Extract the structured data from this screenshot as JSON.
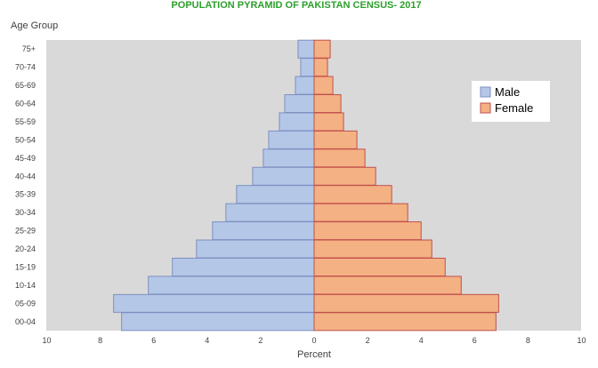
{
  "chart_data": {
    "type": "bar",
    "orientation": "horizontal-diverging",
    "title": "POPULATION PYRAMID OF PAKISTAN CENSUS- 2017",
    "ylabel": "Age Group",
    "xlabel": "Percent",
    "categories": [
      "00-04",
      "05-09",
      "10-14",
      "15-19",
      "20-24",
      "25-29",
      "30-34",
      "35-39",
      "40-44",
      "45-49",
      "50-54",
      "55-59",
      "60-64",
      "65-69",
      "70-74",
      "75+"
    ],
    "series": [
      {
        "name": "Male",
        "side": "left",
        "color": "#b4c7e7",
        "values": [
          7.2,
          7.5,
          6.2,
          5.3,
          4.4,
          3.8,
          3.3,
          2.9,
          2.3,
          1.9,
          1.7,
          1.3,
          1.1,
          0.7,
          0.5,
          0.6
        ]
      },
      {
        "name": "Female",
        "side": "right",
        "color": "#f4b183",
        "values": [
          6.8,
          6.9,
          5.5,
          4.9,
          4.4,
          4.0,
          3.5,
          2.9,
          2.3,
          1.9,
          1.6,
          1.1,
          1.0,
          0.7,
          0.5,
          0.6
        ]
      }
    ],
    "xlim": [
      -10,
      10
    ],
    "xticks": [
      {
        "value": -10,
        "label": "10"
      },
      {
        "value": -8,
        "label": "8"
      },
      {
        "value": -6,
        "label": "6"
      },
      {
        "value": -4,
        "label": "4"
      },
      {
        "value": -2,
        "label": "2"
      },
      {
        "value": 0,
        "label": "0"
      },
      {
        "value": 2,
        "label": "2"
      },
      {
        "value": 4,
        "label": "4"
      },
      {
        "value": 6,
        "label": "6"
      },
      {
        "value": 8,
        "label": "8"
      },
      {
        "value": 10,
        "label": "10"
      }
    ],
    "legend": {
      "position": "top-right",
      "entries": [
        "Male",
        "Female"
      ]
    },
    "grid": false,
    "colors": {
      "title": "#2ca02c",
      "plot_background": "#d9d9d9",
      "male_border": "#7f8fc0",
      "female_border": "#c0504d"
    }
  }
}
